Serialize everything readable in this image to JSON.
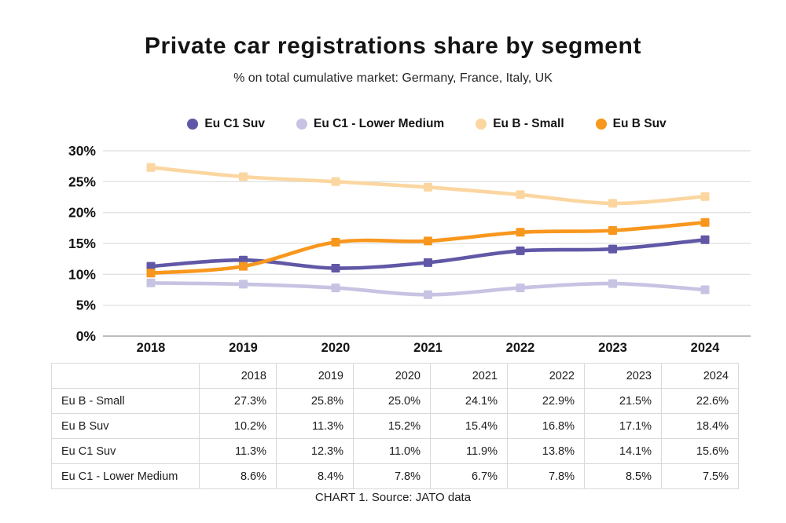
{
  "page": {
    "title": "Private car registrations share by segment",
    "subtitle": "% on total cumulative market: Germany, France, Italy, UK",
    "caption": "CHART 1. Source: JATO data"
  },
  "colors": {
    "eu_c1_suv": "#6058A6",
    "eu_c1_lower_medium": "#C7C3E2",
    "eu_b_small": "#FBD6A0",
    "eu_b_suv": "#F8971D",
    "gridline": "#DDDDDD",
    "axis_line": "#A6A6A6",
    "table_border": "#D9D9D9",
    "text": "#141414"
  },
  "chart_data": {
    "type": "line",
    "title": "Private car registrations share by segment",
    "subtitle": "% on total cumulative market: Germany, France, Italy, UK",
    "categories": [
      "2018",
      "2019",
      "2020",
      "2021",
      "2022",
      "2023",
      "2024"
    ],
    "series": [
      {
        "name": "Eu C1 Suv",
        "color": "#6058A6",
        "values": [
          11.3,
          12.3,
          11.0,
          11.9,
          13.8,
          14.1,
          15.6
        ]
      },
      {
        "name": "Eu C1 - Lower Medium",
        "color": "#C7C3E2",
        "values": [
          8.6,
          8.4,
          7.8,
          6.7,
          7.8,
          8.5,
          7.5
        ]
      },
      {
        "name": "Eu B - Small",
        "color": "#FBD6A0",
        "values": [
          27.3,
          25.8,
          25.0,
          24.1,
          22.9,
          21.5,
          22.6
        ]
      },
      {
        "name": "Eu B Suv",
        "color": "#F8971D",
        "values": [
          10.2,
          11.3,
          15.2,
          15.4,
          16.8,
          17.1,
          18.4
        ]
      }
    ],
    "ylim": [
      0,
      30
    ],
    "ytick_step": 5,
    "ytick_suffix": "%",
    "grid": true,
    "legend_position": "top",
    "marker": "square",
    "smooth": true
  },
  "table": {
    "header": [
      "",
      "2018",
      "2019",
      "2020",
      "2021",
      "2022",
      "2023",
      "2024"
    ],
    "rows": [
      {
        "label": "Eu B - Small",
        "values": [
          "27.3%",
          "25.8%",
          "25.0%",
          "24.1%",
          "22.9%",
          "21.5%",
          "22.6%"
        ]
      },
      {
        "label": "Eu B Suv",
        "values": [
          "10.2%",
          "11.3%",
          "15.2%",
          "15.4%",
          "16.8%",
          "17.1%",
          "18.4%"
        ]
      },
      {
        "label": "Eu C1 Suv",
        "values": [
          "11.3%",
          "12.3%",
          "11.0%",
          "11.9%",
          "13.8%",
          "14.1%",
          "15.6%"
        ]
      },
      {
        "label": "Eu C1 - Lower Medium",
        "values": [
          "8.6%",
          "8.4%",
          "7.8%",
          "6.7%",
          "7.8%",
          "8.5%",
          "7.5%"
        ]
      }
    ]
  }
}
